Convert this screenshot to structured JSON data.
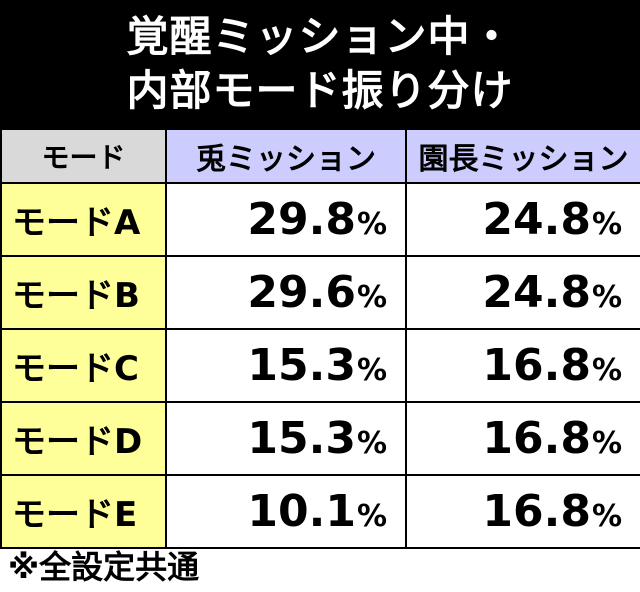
{
  "title": {
    "line1": "覚醒ミッション中・",
    "line2": "内部モード振り分け"
  },
  "table": {
    "header": {
      "mode": "モード",
      "col1": "兎ミッション",
      "col2": "園長ミッション"
    },
    "rows": [
      {
        "mode": "モードA",
        "v1": "29.8",
        "v2": "24.8",
        "unit": "%"
      },
      {
        "mode": "モードB",
        "v1": "29.6",
        "v2": "24.8",
        "unit": "%"
      },
      {
        "mode": "モードC",
        "v1": "15.3",
        "v2": "16.8",
        "unit": "%"
      },
      {
        "mode": "モードD",
        "v1": "15.3",
        "v2": "16.8",
        "unit": "%"
      },
      {
        "mode": "モードE",
        "v1": "10.1",
        "v2": "16.8",
        "unit": "%"
      }
    ]
  },
  "footnote": "※全設定共通",
  "colors": {
    "title_bg": "#000000",
    "mode_header_bg": "#d9d9d9",
    "mission_header_bg": "#ccccff",
    "mode_cell_bg": "#ffff99"
  }
}
